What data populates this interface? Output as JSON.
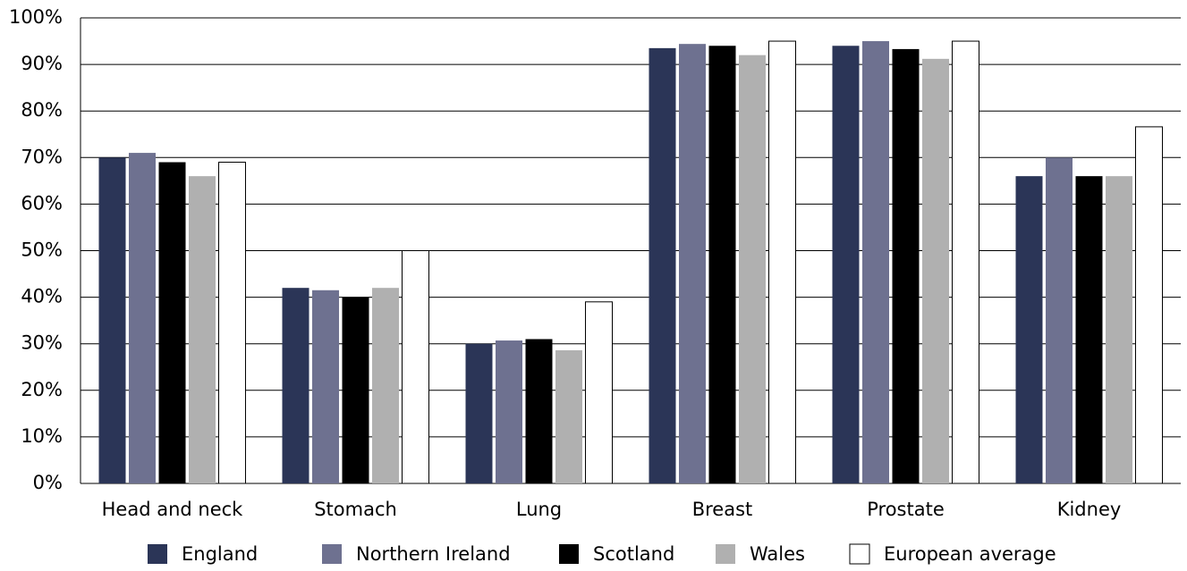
{
  "chart_data": {
    "type": "bar",
    "categories": [
      "Head and neck",
      "Stomach",
      "Lung",
      "Breast",
      "Prostate",
      "Kidney"
    ],
    "series": [
      {
        "name": "England",
        "color": "#2b3557",
        "values": [
          70,
          42,
          30,
          93.5,
          94,
          66
        ]
      },
      {
        "name": "Northern Ireland",
        "color": "#6e7190",
        "values": [
          71,
          41.5,
          30.7,
          94.4,
          95,
          70
        ]
      },
      {
        "name": "Scotland",
        "color": "#000000",
        "values": [
          69,
          40,
          31,
          94,
          93.3,
          66
        ]
      },
      {
        "name": "Wales",
        "color": "#b0b0b0",
        "values": [
          66,
          42,
          28.6,
          92,
          91.2,
          66
        ]
      },
      {
        "name": "European average",
        "color": "#ffffff",
        "values": [
          69,
          50,
          39,
          95,
          95,
          76.6
        ]
      }
    ],
    "ylim": [
      0,
      100
    ],
    "yticks": [
      {
        "value": 0,
        "label": "0%"
      },
      {
        "value": 10,
        "label": "10%"
      },
      {
        "value": 20,
        "label": "20%"
      },
      {
        "value": 30,
        "label": "30%"
      },
      {
        "value": 40,
        "label": "40%"
      },
      {
        "value": 50,
        "label": "50%"
      },
      {
        "value": 60,
        "label": "60%"
      },
      {
        "value": 70,
        "label": "70%"
      },
      {
        "value": 80,
        "label": "80%"
      },
      {
        "value": 90,
        "label": "90%"
      },
      {
        "value": 100,
        "label": "100%"
      }
    ],
    "grid": true,
    "legend": "bottom"
  }
}
